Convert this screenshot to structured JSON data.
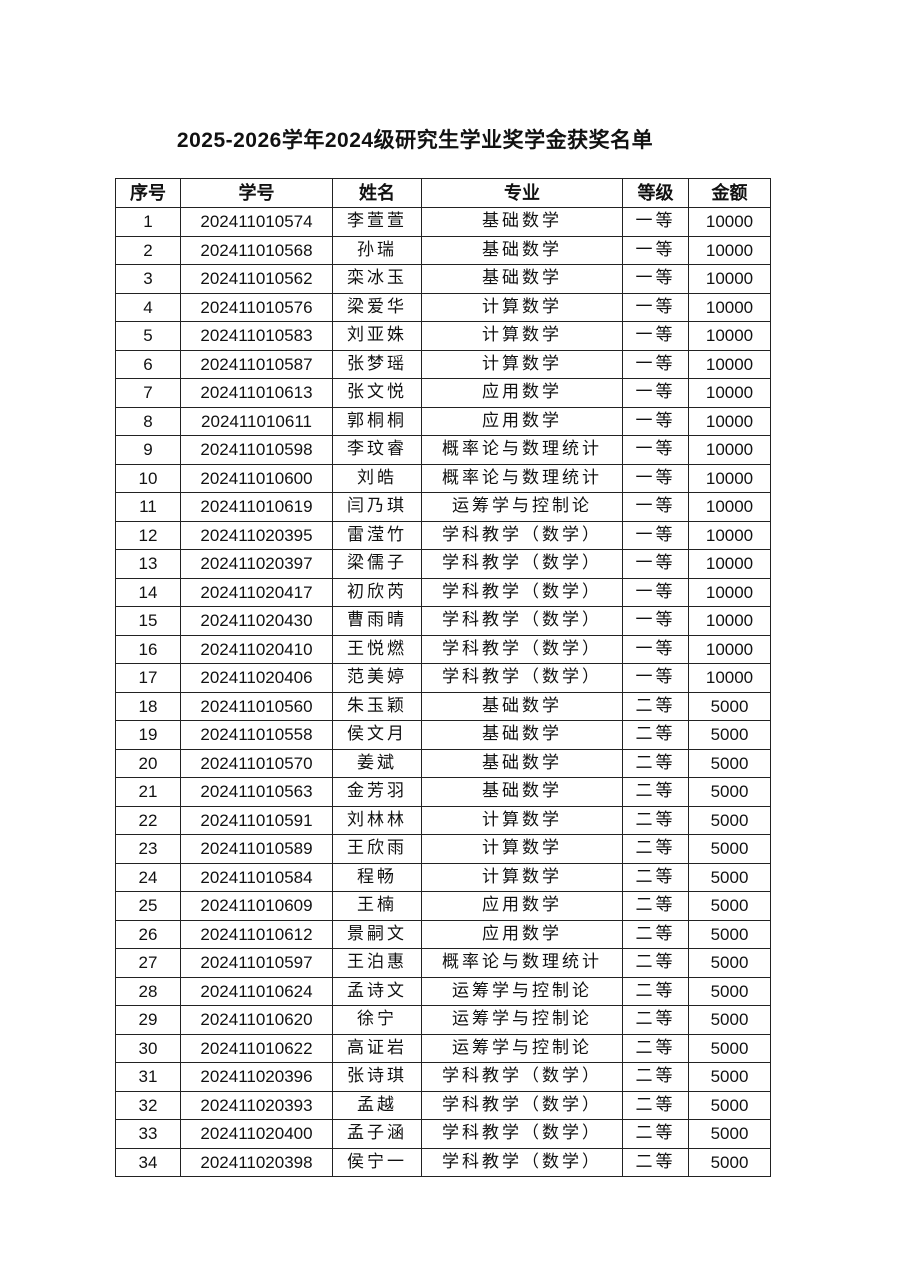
{
  "title": "2025-2026学年2024级研究生学业奖学金获奖名单",
  "headers": [
    "序号",
    "学号",
    "姓名",
    "专业",
    "等级",
    "金额"
  ],
  "rows": [
    [
      "1",
      "202411010574",
      "李萱萱",
      "基础数学",
      "一等",
      "10000"
    ],
    [
      "2",
      "202411010568",
      "孙瑞",
      "基础数学",
      "一等",
      "10000"
    ],
    [
      "3",
      "202411010562",
      "栾冰玉",
      "基础数学",
      "一等",
      "10000"
    ],
    [
      "4",
      "202411010576",
      "梁爱华",
      "计算数学",
      "一等",
      "10000"
    ],
    [
      "5",
      "202411010583",
      "刘亚姝",
      "计算数学",
      "一等",
      "10000"
    ],
    [
      "6",
      "202411010587",
      "张梦瑶",
      "计算数学",
      "一等",
      "10000"
    ],
    [
      "7",
      "202411010613",
      "张文悦",
      "应用数学",
      "一等",
      "10000"
    ],
    [
      "8",
      "202411010611",
      "郭桐桐",
      "应用数学",
      "一等",
      "10000"
    ],
    [
      "9",
      "202411010598",
      "李玟睿",
      "概率论与数理统计",
      "一等",
      "10000"
    ],
    [
      "10",
      "202411010600",
      "刘皓",
      "概率论与数理统计",
      "一等",
      "10000"
    ],
    [
      "11",
      "202411010619",
      "闫乃琪",
      "运筹学与控制论",
      "一等",
      "10000"
    ],
    [
      "12",
      "202411020395",
      "雷滢竹",
      "学科教学（数学）",
      "一等",
      "10000"
    ],
    [
      "13",
      "202411020397",
      "梁儒子",
      "学科教学（数学）",
      "一等",
      "10000"
    ],
    [
      "14",
      "202411020417",
      "初欣芮",
      "学科教学（数学）",
      "一等",
      "10000"
    ],
    [
      "15",
      "202411020430",
      "曹雨晴",
      "学科教学（数学）",
      "一等",
      "10000"
    ],
    [
      "16",
      "202411020410",
      "王悦燃",
      "学科教学（数学）",
      "一等",
      "10000"
    ],
    [
      "17",
      "202411020406",
      "范美婷",
      "学科教学（数学）",
      "一等",
      "10000"
    ],
    [
      "18",
      "202411010560",
      "朱玉颖",
      "基础数学",
      "二等",
      "5000"
    ],
    [
      "19",
      "202411010558",
      "侯文月",
      "基础数学",
      "二等",
      "5000"
    ],
    [
      "20",
      "202411010570",
      "姜斌",
      "基础数学",
      "二等",
      "5000"
    ],
    [
      "21",
      "202411010563",
      "金芳羽",
      "基础数学",
      "二等",
      "5000"
    ],
    [
      "22",
      "202411010591",
      "刘林林",
      "计算数学",
      "二等",
      "5000"
    ],
    [
      "23",
      "202411010589",
      "王欣雨",
      "计算数学",
      "二等",
      "5000"
    ],
    [
      "24",
      "202411010584",
      "程畅",
      "计算数学",
      "二等",
      "5000"
    ],
    [
      "25",
      "202411010609",
      "王楠",
      "应用数学",
      "二等",
      "5000"
    ],
    [
      "26",
      "202411010612",
      "景嗣文",
      "应用数学",
      "二等",
      "5000"
    ],
    [
      "27",
      "202411010597",
      "王泊惠",
      "概率论与数理统计",
      "二等",
      "5000"
    ],
    [
      "28",
      "202411010624",
      "孟诗文",
      "运筹学与控制论",
      "二等",
      "5000"
    ],
    [
      "29",
      "202411010620",
      "徐宁",
      "运筹学与控制论",
      "二等",
      "5000"
    ],
    [
      "30",
      "202411010622",
      "高证岩",
      "运筹学与控制论",
      "二等",
      "5000"
    ],
    [
      "31",
      "202411020396",
      "张诗琪",
      "学科教学（数学）",
      "二等",
      "5000"
    ],
    [
      "32",
      "202411020393",
      "孟越",
      "学科教学（数学）",
      "二等",
      "5000"
    ],
    [
      "33",
      "202411020400",
      "孟子涵",
      "学科教学（数学）",
      "二等",
      "5000"
    ],
    [
      "34",
      "202411020398",
      "侯宁一",
      "学科教学（数学）",
      "二等",
      "5000"
    ]
  ]
}
